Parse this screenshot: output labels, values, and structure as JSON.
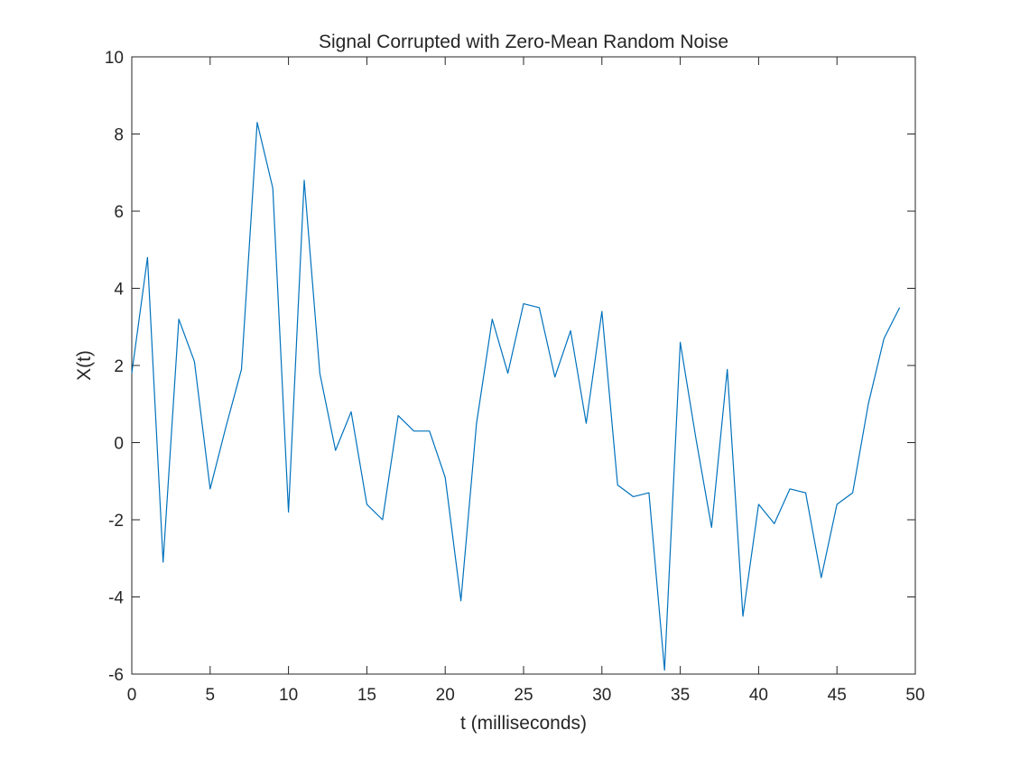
{
  "chart_data": {
    "type": "line",
    "title": "Signal Corrupted with Zero-Mean Random Noise",
    "xlabel": "t (milliseconds)",
    "ylabel": "X(t)",
    "xlim": [
      0,
      50
    ],
    "ylim": [
      -6,
      10
    ],
    "xticks": [
      0,
      5,
      10,
      15,
      20,
      25,
      30,
      35,
      40,
      45,
      50
    ],
    "yticks": [
      -6,
      -4,
      -2,
      0,
      2,
      4,
      6,
      8,
      10
    ],
    "grid": false,
    "line_color": "#0072BD",
    "series": [
      {
        "x": [
          0,
          1,
          2,
          3,
          4,
          5,
          6,
          7,
          8,
          9,
          10,
          11,
          12,
          13,
          14,
          15,
          16,
          17,
          18,
          19,
          20,
          21,
          22,
          23,
          24,
          25,
          26,
          27,
          28,
          29,
          30,
          31,
          32,
          33,
          34,
          35,
          36,
          37,
          38,
          39,
          40,
          41,
          42,
          43,
          44,
          45,
          46,
          47,
          48,
          49
        ],
        "values": [
          1.8,
          4.8,
          -3.1,
          3.2,
          2.1,
          -1.2,
          0.4,
          1.9,
          8.3,
          6.6,
          -1.8,
          6.8,
          1.8,
          -0.2,
          0.8,
          -1.6,
          -2.0,
          0.7,
          0.3,
          0.3,
          -0.9,
          -4.1,
          0.5,
          3.2,
          1.8,
          3.6,
          3.5,
          1.7,
          2.9,
          0.5,
          3.4,
          -1.1,
          -1.4,
          -1.3,
          -5.9,
          2.6,
          0.1,
          -2.2,
          1.9,
          -4.5,
          -1.6,
          -2.1,
          -1.2,
          -1.3,
          -3.5,
          -1.6,
          -1.3,
          1.0,
          2.7,
          3.5
        ]
      }
    ]
  }
}
